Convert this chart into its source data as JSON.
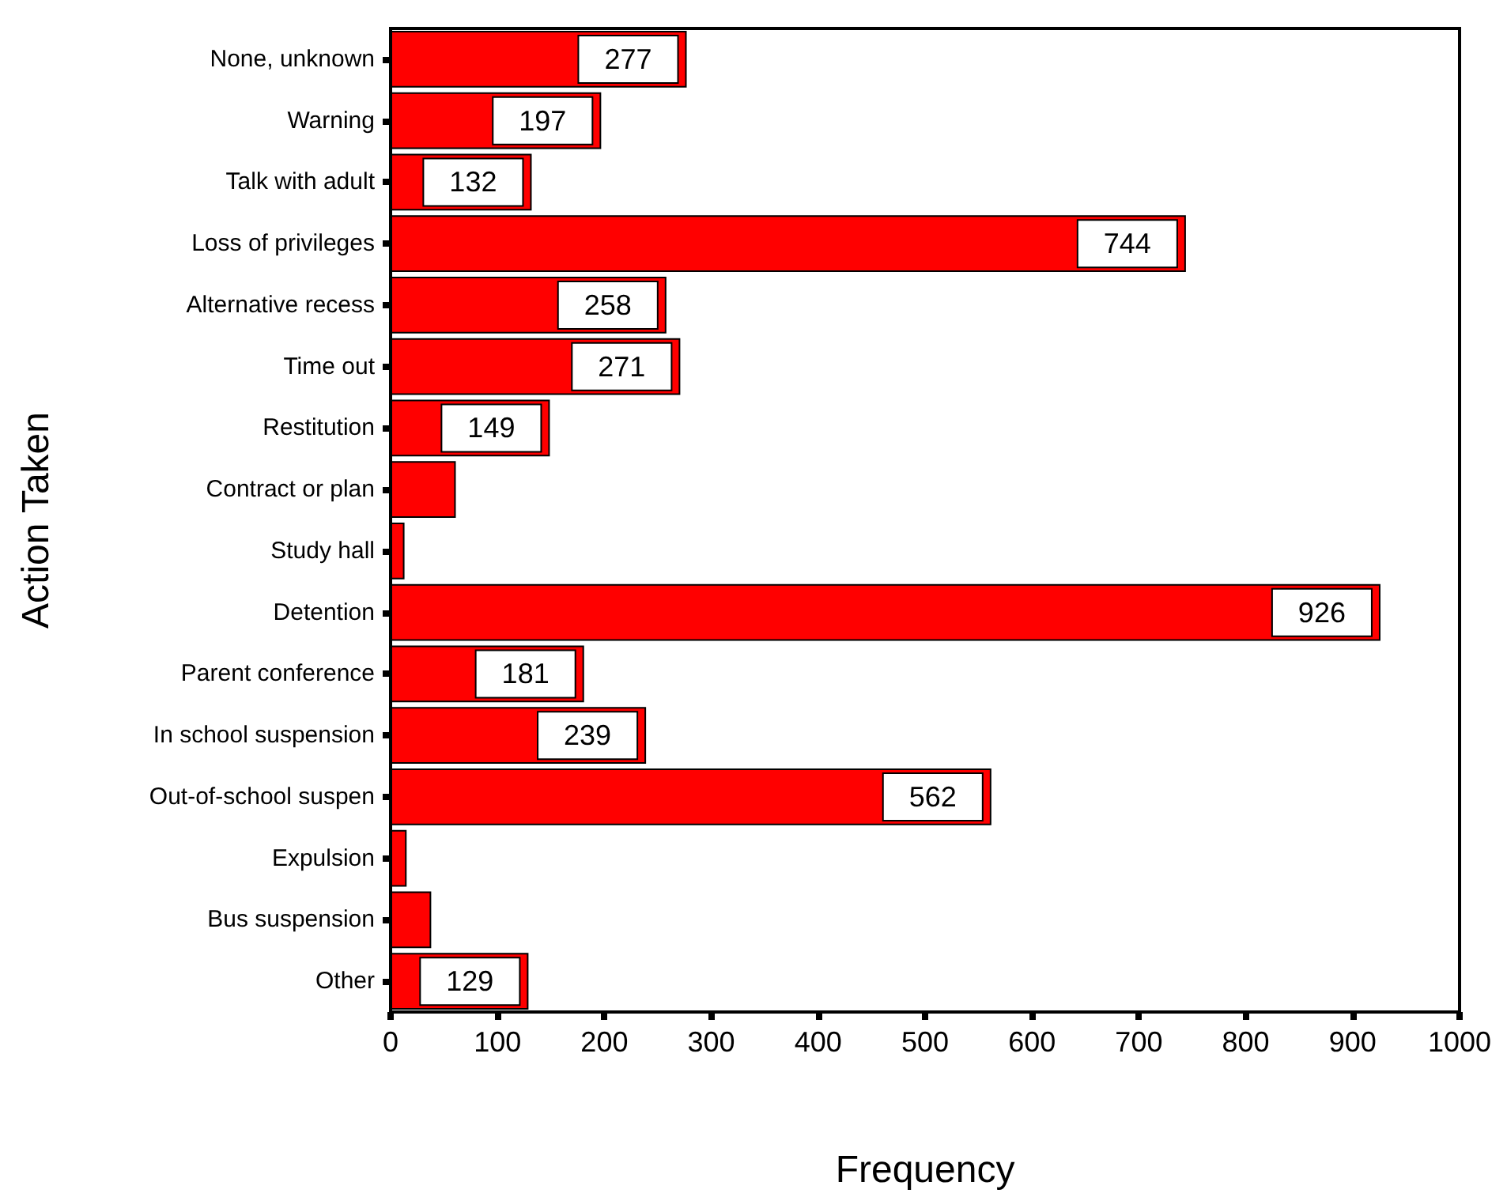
{
  "chart_data": {
    "type": "bar",
    "orientation": "horizontal",
    "xlabel": "Frequency",
    "ylabel": "Action Taken",
    "categories": [
      "None, unknown",
      "Warning",
      "Talk with adult",
      "Loss of privileges",
      "Alternative recess",
      "Time out",
      "Restitution",
      "Contract or plan",
      "Study hall",
      "Detention",
      "Parent conference",
      "In school suspension",
      "Out-of-school suspen",
      "Expulsion",
      "Bus suspension",
      "Other"
    ],
    "values": [
      277,
      197,
      132,
      744,
      258,
      271,
      149,
      61,
      13,
      926,
      181,
      239,
      562,
      15,
      38,
      129
    ],
    "value_labels": [
      "277",
      "197",
      "132",
      "744",
      "258",
      "271",
      "149",
      null,
      null,
      "926",
      "181",
      "239",
      "562",
      null,
      null,
      "129"
    ],
    "color": "#ff0000",
    "xlim": [
      0,
      1000
    ],
    "xticks": [
      0,
      100,
      200,
      300,
      400,
      500,
      600,
      700,
      800,
      900,
      1000
    ],
    "grid": false
  }
}
